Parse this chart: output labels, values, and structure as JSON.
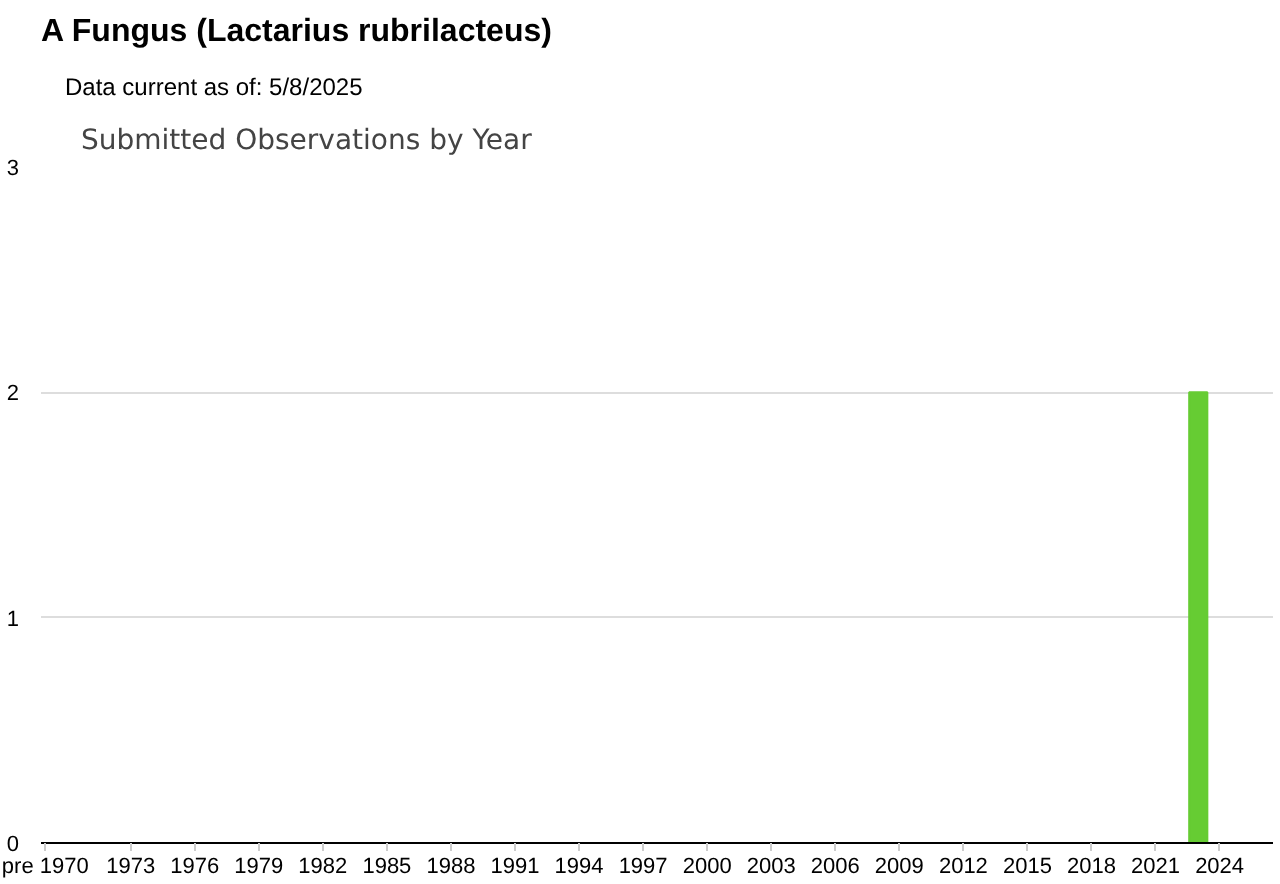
{
  "chart_data": {
    "type": "bar",
    "title": "A Fungus   (Lactarius rubrilacteus)",
    "subtitle": "Data current as of: 5/8/2025",
    "annotations": [
      "Submitted Observations by Year"
    ],
    "categories": [
      "pre 1970",
      null,
      null,
      null,
      "1973",
      null,
      null,
      "1976",
      null,
      null,
      "1979",
      null,
      null,
      "1982",
      null,
      null,
      "1985",
      null,
      null,
      "1988",
      null,
      null,
      "1991",
      null,
      null,
      "1994",
      null,
      null,
      "1997",
      null,
      null,
      "2000",
      null,
      null,
      "2003",
      null,
      null,
      "2006",
      null,
      null,
      "2009",
      null,
      null,
      "2012",
      null,
      null,
      "2015",
      null,
      null,
      "2018",
      null,
      null,
      "2021",
      null,
      null,
      "2024",
      null
    ],
    "values": [
      0,
      0,
      0,
      0,
      0,
      0,
      0,
      0,
      0,
      0,
      0,
      0,
      0,
      0,
      0,
      0,
      0,
      0,
      0,
      0,
      0,
      0,
      0,
      0,
      0,
      0,
      0,
      0,
      0,
      0,
      0,
      0,
      0,
      0,
      0,
      0,
      0,
      0,
      0,
      0,
      0,
      0,
      0,
      0,
      0,
      0,
      0,
      0,
      0,
      0,
      0,
      0,
      0,
      0,
      2,
      0,
      0
    ],
    "color": "#66cc33",
    "ylim": [
      0,
      3
    ],
    "yticks": [
      0,
      1,
      2,
      3
    ],
    "grid": "y"
  }
}
